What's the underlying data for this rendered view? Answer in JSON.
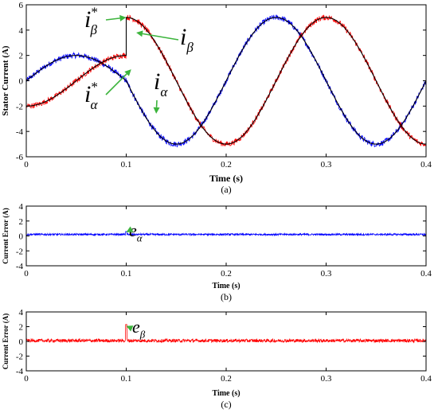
{
  "chart_data": [
    {
      "type": "line",
      "caption": "(a)",
      "xlabel": "Time (s)",
      "ylabel": "Stator Current (A)",
      "xlim": [
        0,
        0.4
      ],
      "ylim": [
        -6,
        6
      ],
      "xticks": [
        "0",
        "0.1",
        "0.2",
        "0.3",
        "0.4"
      ],
      "yticks": [
        "6",
        "4",
        "2",
        "0",
        "-2",
        "-4",
        "-6"
      ],
      "series": [
        {
          "name": "i_alpha",
          "color": "#0000ff",
          "noise": 0.22,
          "segments": [
            {
              "t0": 0,
              "t1": 0.1,
              "amp": 2,
              "freq": 5,
              "phase": 0
            },
            {
              "t0": 0.1,
              "t1": 0.4,
              "amp": 5,
              "freq": 5,
              "phase": 0
            }
          ]
        },
        {
          "name": "i_beta",
          "color": "#ff0000",
          "noise": 0.22,
          "segments": [
            {
              "t0": 0,
              "t1": 0.1,
              "amp": 2,
              "freq": 5,
              "phase": -1.5708
            },
            {
              "t0": 0.1,
              "t1": 0.4,
              "amp": 5,
              "freq": 5,
              "phase": -1.5708
            }
          ]
        },
        {
          "name": "i_alpha_ref",
          "color": "#000000",
          "noise": 0,
          "segments": [
            {
              "t0": 0,
              "t1": 0.1,
              "amp": 2,
              "freq": 5,
              "phase": 0
            },
            {
              "t0": 0.1,
              "t1": 0.4,
              "amp": 5,
              "freq": 5,
              "phase": 0
            }
          ]
        },
        {
          "name": "i_beta_ref",
          "color": "#000000",
          "noise": 0,
          "segments": [
            {
              "t0": 0,
              "t1": 0.1,
              "amp": 2,
              "freq": 5,
              "phase": -1.5708
            },
            {
              "t0": 0.1,
              "t1": 0.4,
              "amp": 5,
              "freq": 5,
              "phase": -1.5708
            }
          ]
        }
      ],
      "annotations": [
        {
          "base": "i",
          "sub": "β",
          "sup": "*",
          "points_to": [
            0.1,
            5.0
          ]
        },
        {
          "base": "i",
          "sub": "β",
          "sup": "",
          "points_to": [
            0.11,
            3.8
          ]
        },
        {
          "base": "i",
          "sub": "α",
          "sup": "*",
          "points_to": [
            0.105,
            0.9
          ]
        },
        {
          "base": "i",
          "sub": "α",
          "sup": "",
          "points_to": [
            0.13,
            -2.6
          ]
        }
      ]
    },
    {
      "type": "line",
      "caption": "(b)",
      "xlabel": "Time (s)",
      "ylabel": "Current Error (A)",
      "xlim": [
        0,
        0.4
      ],
      "ylim": [
        -4,
        4
      ],
      "xticks": [
        "0",
        "0.1",
        "0.2",
        "0.3",
        "0.4"
      ],
      "yticks": [
        "4",
        "2",
        "0",
        "-2",
        "-4"
      ],
      "series": [
        {
          "name": "e_alpha",
          "color": "#0000ff",
          "mean": 0.2,
          "noise": 0.12,
          "spikes": [
            {
              "t": 0.1,
              "value": 0.6
            }
          ]
        }
      ],
      "annotations": [
        {
          "base": "e",
          "sub": "α",
          "sup": "",
          "points_to": [
            0.1,
            0.5
          ]
        }
      ]
    },
    {
      "type": "line",
      "caption": "(c)",
      "xlabel": "Time (s)",
      "ylabel": "Current Error (A)",
      "xlim": [
        0,
        0.4
      ],
      "ylim": [
        -4,
        4
      ],
      "xticks": [
        "0",
        "0.1",
        "0.2",
        "0.3",
        "0.4"
      ],
      "yticks": [
        "4",
        "2",
        "0",
        "-2",
        "-4"
      ],
      "series": [
        {
          "name": "e_beta",
          "color": "#ff0000",
          "mean": 0.1,
          "noise": 0.22,
          "spikes": [
            {
              "t": 0.1,
              "value": 2.3
            }
          ]
        }
      ],
      "annotations": [
        {
          "base": "e",
          "sub": "β",
          "sup": "",
          "points_to": [
            0.1,
            2.1
          ]
        }
      ]
    }
  ]
}
